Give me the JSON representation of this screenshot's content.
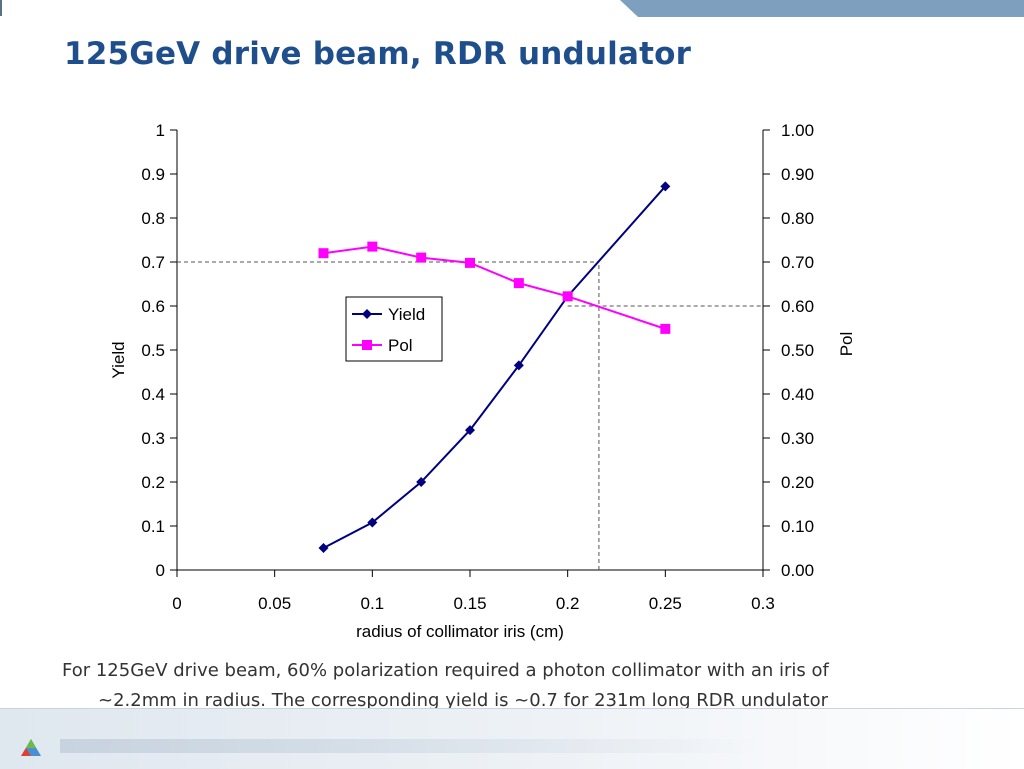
{
  "slide": {
    "title": "125GeV drive beam, RDR undulator",
    "caption_line1": "For 125GeV drive beam, 60% polarization required a photon collimator with an iris of",
    "caption_line2": "~2.2mm in radius.  The corresponding yield is ~0.7 for 231m long RDR undulator"
  },
  "colors": {
    "title": "#1f4e8c",
    "yield": "#000080",
    "pol": "#ff00ff",
    "band": "#7f9fbe"
  },
  "chart_data": {
    "type": "line",
    "xlabel": "radius of collimator iris (cm)",
    "ylabel": "Yield",
    "y2label": "Pol",
    "xlim": [
      0,
      0.3
    ],
    "ylim": [
      0,
      1
    ],
    "y2lim": [
      0,
      1
    ],
    "x_ticks": [
      "0",
      "0.05",
      "0.1",
      "0.15",
      "0.2",
      "0.25",
      "0.3"
    ],
    "y_ticks": [
      "0",
      "0.1",
      "0.2",
      "0.3",
      "0.4",
      "0.5",
      "0.6",
      "0.7",
      "0.8",
      "0.9",
      "1"
    ],
    "y2_ticks": [
      "0.00",
      "0.10",
      "0.20",
      "0.30",
      "0.40",
      "0.50",
      "0.60",
      "0.70",
      "0.80",
      "0.90",
      "1.00"
    ],
    "grid": false,
    "legend_position": "center-left",
    "series": [
      {
        "name": "Yield",
        "axis": "left",
        "marker": "diamond",
        "x": [
          0.075,
          0.1,
          0.125,
          0.15,
          0.175,
          0.2,
          0.25
        ],
        "values": [
          0.05,
          0.108,
          0.2,
          0.318,
          0.465,
          0.622,
          0.872
        ]
      },
      {
        "name": "Pol",
        "axis": "right",
        "marker": "square",
        "x": [
          0.075,
          0.1,
          0.125,
          0.15,
          0.175,
          0.2,
          0.25
        ],
        "values": [
          0.72,
          0.735,
          0.71,
          0.698,
          0.652,
          0.622,
          0.548
        ]
      }
    ],
    "reference_lines": [
      {
        "axis": "left",
        "y": 0.7,
        "x_to": 0.216
      },
      {
        "axis": "right",
        "y": 0.6,
        "x_from": 0.2
      },
      {
        "x": 0.216,
        "y_from": 0,
        "y_to": 0.7
      }
    ]
  }
}
